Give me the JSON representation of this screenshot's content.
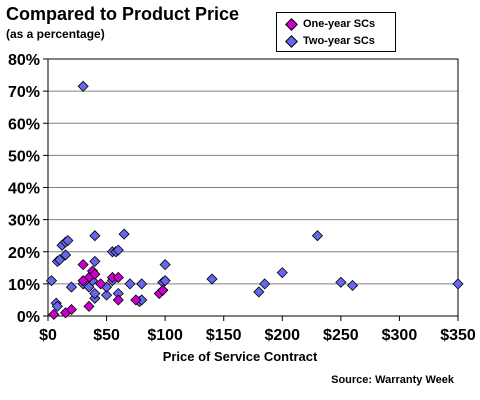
{
  "colors": {
    "one_year": "#cc00cc",
    "two_year": "#6666ee",
    "plot_background": "#ffffff",
    "gridline": "#808080"
  },
  "source": "Source: Warranty Week",
  "chart_data": {
    "type": "scatter",
    "title": "Compared to Product Price",
    "subtitle": "(as a percentage)",
    "xlabel": "Price of Service Contract",
    "ylabel": "",
    "xlim": [
      0,
      350
    ],
    "ylim": [
      0,
      80
    ],
    "x_ticks": [
      0,
      50,
      100,
      150,
      200,
      250,
      300,
      350
    ],
    "y_ticks": [
      0,
      10,
      20,
      30,
      40,
      50,
      60,
      70,
      80
    ],
    "x_tick_labels": [
      "$0",
      "$50",
      "$100",
      "$150",
      "$200",
      "$250",
      "$300",
      "$350"
    ],
    "y_tick_labels": [
      "0%",
      "10%",
      "20%",
      "30%",
      "40%",
      "50%",
      "60%",
      "70%",
      "80%"
    ],
    "grid": "horizontal",
    "legend_position": "top-right",
    "series": [
      {
        "name": "One-year SCs",
        "marker": "diamond",
        "points": [
          [
            5,
            0.5
          ],
          [
            15,
            1
          ],
          [
            20,
            2
          ],
          [
            30,
            16
          ],
          [
            35,
            12
          ],
          [
            38,
            14
          ],
          [
            30,
            11
          ],
          [
            40,
            13
          ],
          [
            45,
            10
          ],
          [
            55,
            12
          ],
          [
            60,
            12
          ],
          [
            60,
            5
          ],
          [
            35,
            3
          ],
          [
            75,
            5
          ],
          [
            95,
            7
          ],
          [
            98,
            8
          ]
        ]
      },
      {
        "name": "Two-year SCs",
        "marker": "diamond",
        "points": [
          [
            3,
            11
          ],
          [
            7,
            4
          ],
          [
            8,
            3
          ],
          [
            8,
            17
          ],
          [
            10,
            17.5
          ],
          [
            12,
            22
          ],
          [
            15,
            19
          ],
          [
            15,
            23
          ],
          [
            17,
            23.5
          ],
          [
            20,
            9
          ],
          [
            30,
            10
          ],
          [
            30,
            71.5
          ],
          [
            35,
            9
          ],
          [
            38,
            11
          ],
          [
            40,
            5.5
          ],
          [
            40,
            7
          ],
          [
            40,
            25
          ],
          [
            40,
            17
          ],
          [
            50,
            6.5
          ],
          [
            50,
            9
          ],
          [
            55,
            20
          ],
          [
            55,
            11
          ],
          [
            58,
            20
          ],
          [
            60,
            20.5
          ],
          [
            60,
            7
          ],
          [
            65,
            25.5
          ],
          [
            70,
            10
          ],
          [
            78,
            4.5
          ],
          [
            80,
            5
          ],
          [
            80,
            10
          ],
          [
            98,
            8
          ],
          [
            98,
            10.5
          ],
          [
            100,
            16
          ],
          [
            100,
            11
          ],
          [
            140,
            11.5
          ],
          [
            180,
            7.5
          ],
          [
            185,
            10
          ],
          [
            200,
            13.5
          ],
          [
            230,
            25
          ],
          [
            250,
            10.5
          ],
          [
            260,
            9.5
          ],
          [
            350,
            10
          ]
        ]
      }
    ]
  }
}
